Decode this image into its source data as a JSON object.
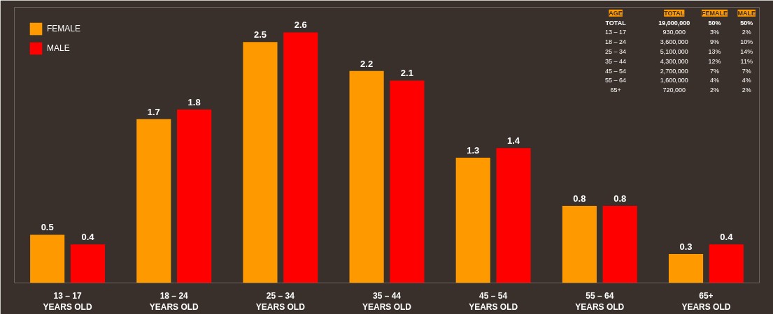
{
  "chart_data": {
    "type": "bar",
    "categories": [
      "13 – 17\nYEARS OLD",
      "18 – 24\nYEARS OLD",
      "25 – 34\nYEARS OLD",
      "35 – 44\nYEARS OLD",
      "45 – 54\nYEARS OLD",
      "55 – 64\nYEARS OLD",
      "65+\nYEARS OLD"
    ],
    "series": [
      {
        "name": "FEMALE",
        "color": "#ff9900",
        "values": [
          0.5,
          1.7,
          2.5,
          2.2,
          1.3,
          0.8,
          0.3
        ]
      },
      {
        "name": "MALE",
        "color": "#ff0000",
        "values": [
          0.4,
          1.8,
          2.6,
          2.1,
          1.4,
          0.8,
          0.4
        ]
      }
    ],
    "data_labels": true,
    "legend": "top left",
    "grid": false,
    "tick_labels": "x",
    "annotations": [
      "AGE",
      "TOTAL",
      "FEMALE",
      "MALE",
      "TOTAL",
      "19,000,000",
      "50%",
      "50%",
      "13 – 17",
      "930,000",
      "3%",
      "2%",
      "18 – 24",
      "3,600,000",
      "9%",
      "10%",
      "25 – 34",
      "5,100,000",
      "13%",
      "14%",
      "35 – 44",
      "4,300,000",
      "12%",
      "11%",
      "45 – 54",
      "2,700,000",
      "7%",
      "7%",
      "55 – 64",
      "1,600,000",
      "4%",
      "4%",
      "65+",
      "720,000",
      "2%",
      "2%"
    ]
  }
}
